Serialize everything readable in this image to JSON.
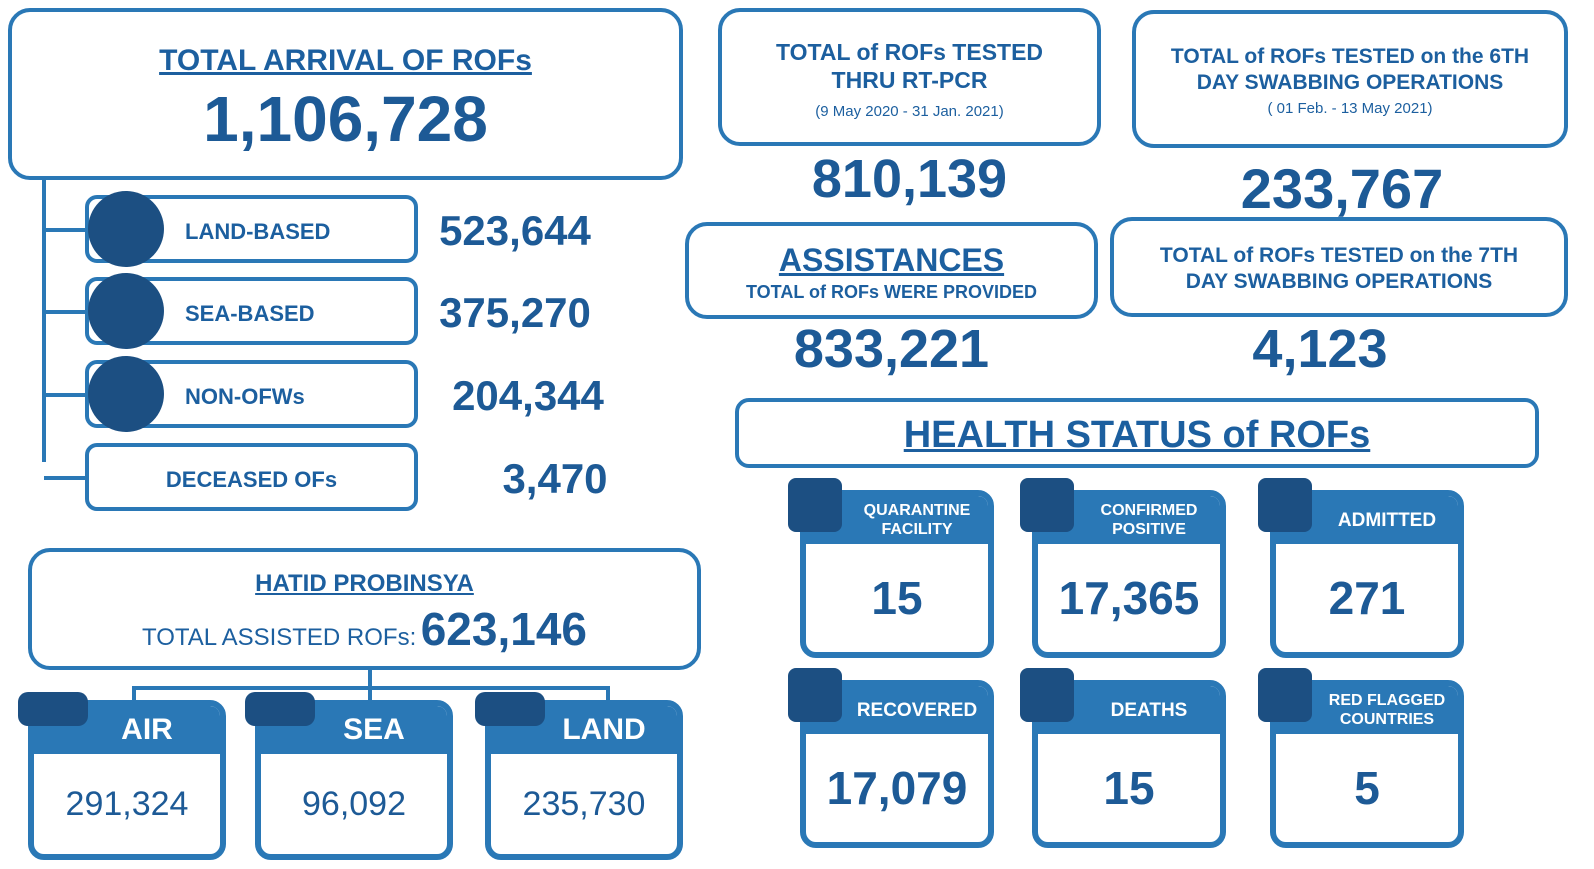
{
  "total_arrival": {
    "title": "TOTAL ARRIVAL OF ROFs",
    "value": "1,106,728"
  },
  "breakdown": [
    {
      "label": "LAND-BASED",
      "value": "523,644"
    },
    {
      "label": "SEA-BASED",
      "value": "375,270"
    },
    {
      "label": "NON-OFWs",
      "value": "204,344"
    },
    {
      "label": "DECEASED OFs",
      "value": "3,470"
    }
  ],
  "tested_rtpcr": {
    "title_lines": [
      "TOTAL of ROFs TESTED",
      "THRU RT-PCR"
    ],
    "period": "(9 May 2020 -  31 Jan. 2021)",
    "value": "810,139"
  },
  "tested_6th": {
    "title_lines": [
      "TOTAL of ROFs TESTED on the 6TH",
      "DAY SWABBING OPERATIONS"
    ],
    "period": "( 01 Feb. -  13 May 2021)",
    "value": "233,767"
  },
  "assistances": {
    "title": "ASSISTANCES",
    "subtitle": "TOTAL of ROFs WERE PROVIDED",
    "value": "833,221"
  },
  "tested_7th": {
    "title_lines": [
      "TOTAL of ROFs TESTED on the 7TH",
      "DAY SWABBING OPERATIONS"
    ],
    "value": "4,123"
  },
  "health_status": {
    "title": "HEALTH STATUS of ROFs",
    "items": [
      {
        "label_lines": [
          "QUARANTINE",
          "FACILITY"
        ],
        "value": "15"
      },
      {
        "label_lines": [
          "CONFIRMED",
          "POSITIVE"
        ],
        "value": "17,365"
      },
      {
        "label_lines": [
          "ADMITTED"
        ],
        "value": "271"
      },
      {
        "label_lines": [
          "RECOVERED"
        ],
        "value": "17,079"
      },
      {
        "label_lines": [
          "DEATHS"
        ],
        "value": "15"
      },
      {
        "label_lines": [
          "RED FLAGGED",
          "COUNTRIES"
        ],
        "value": "5"
      }
    ]
  },
  "hatid": {
    "title": "HATID PROBINSYA",
    "label": "TOTAL ASSISTED ROFs:",
    "value": "623,146",
    "modes": [
      {
        "label": "AIR",
        "value": "291,324"
      },
      {
        "label": "SEA",
        "value": "96,092"
      },
      {
        "label": "LAND",
        "value": "235,730"
      }
    ]
  }
}
